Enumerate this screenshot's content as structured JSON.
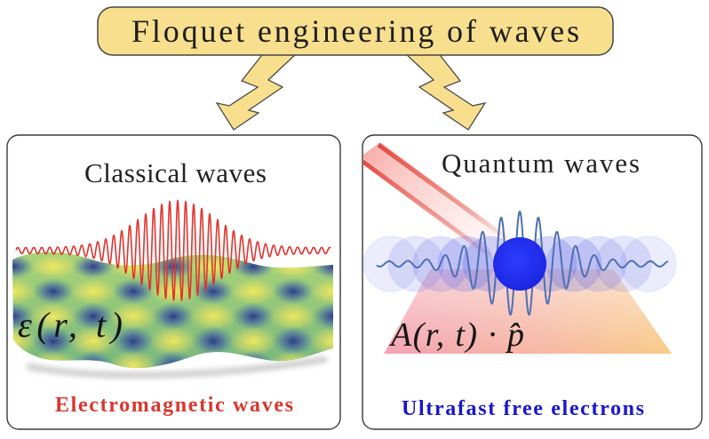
{
  "figure": {
    "title": "Floquet engineering of waves",
    "classical": {
      "title": "Classical waves",
      "equation": "ε(r, t)",
      "caption": "Electromagnetic waves"
    },
    "quantum": {
      "title": "Quantum waves",
      "equation": "A(r, t) · p̂",
      "caption": "Ultrafast free electrons"
    }
  },
  "colors": {
    "banner_fill": "#f8df8e",
    "em_wave": "#e0342f",
    "classical_caption": "#d8372e",
    "electron_wave": "#4d70b6",
    "electron": "#1c26e0",
    "electron_cloud": "#5a62e4",
    "quantum_caption": "#1a16cc"
  }
}
